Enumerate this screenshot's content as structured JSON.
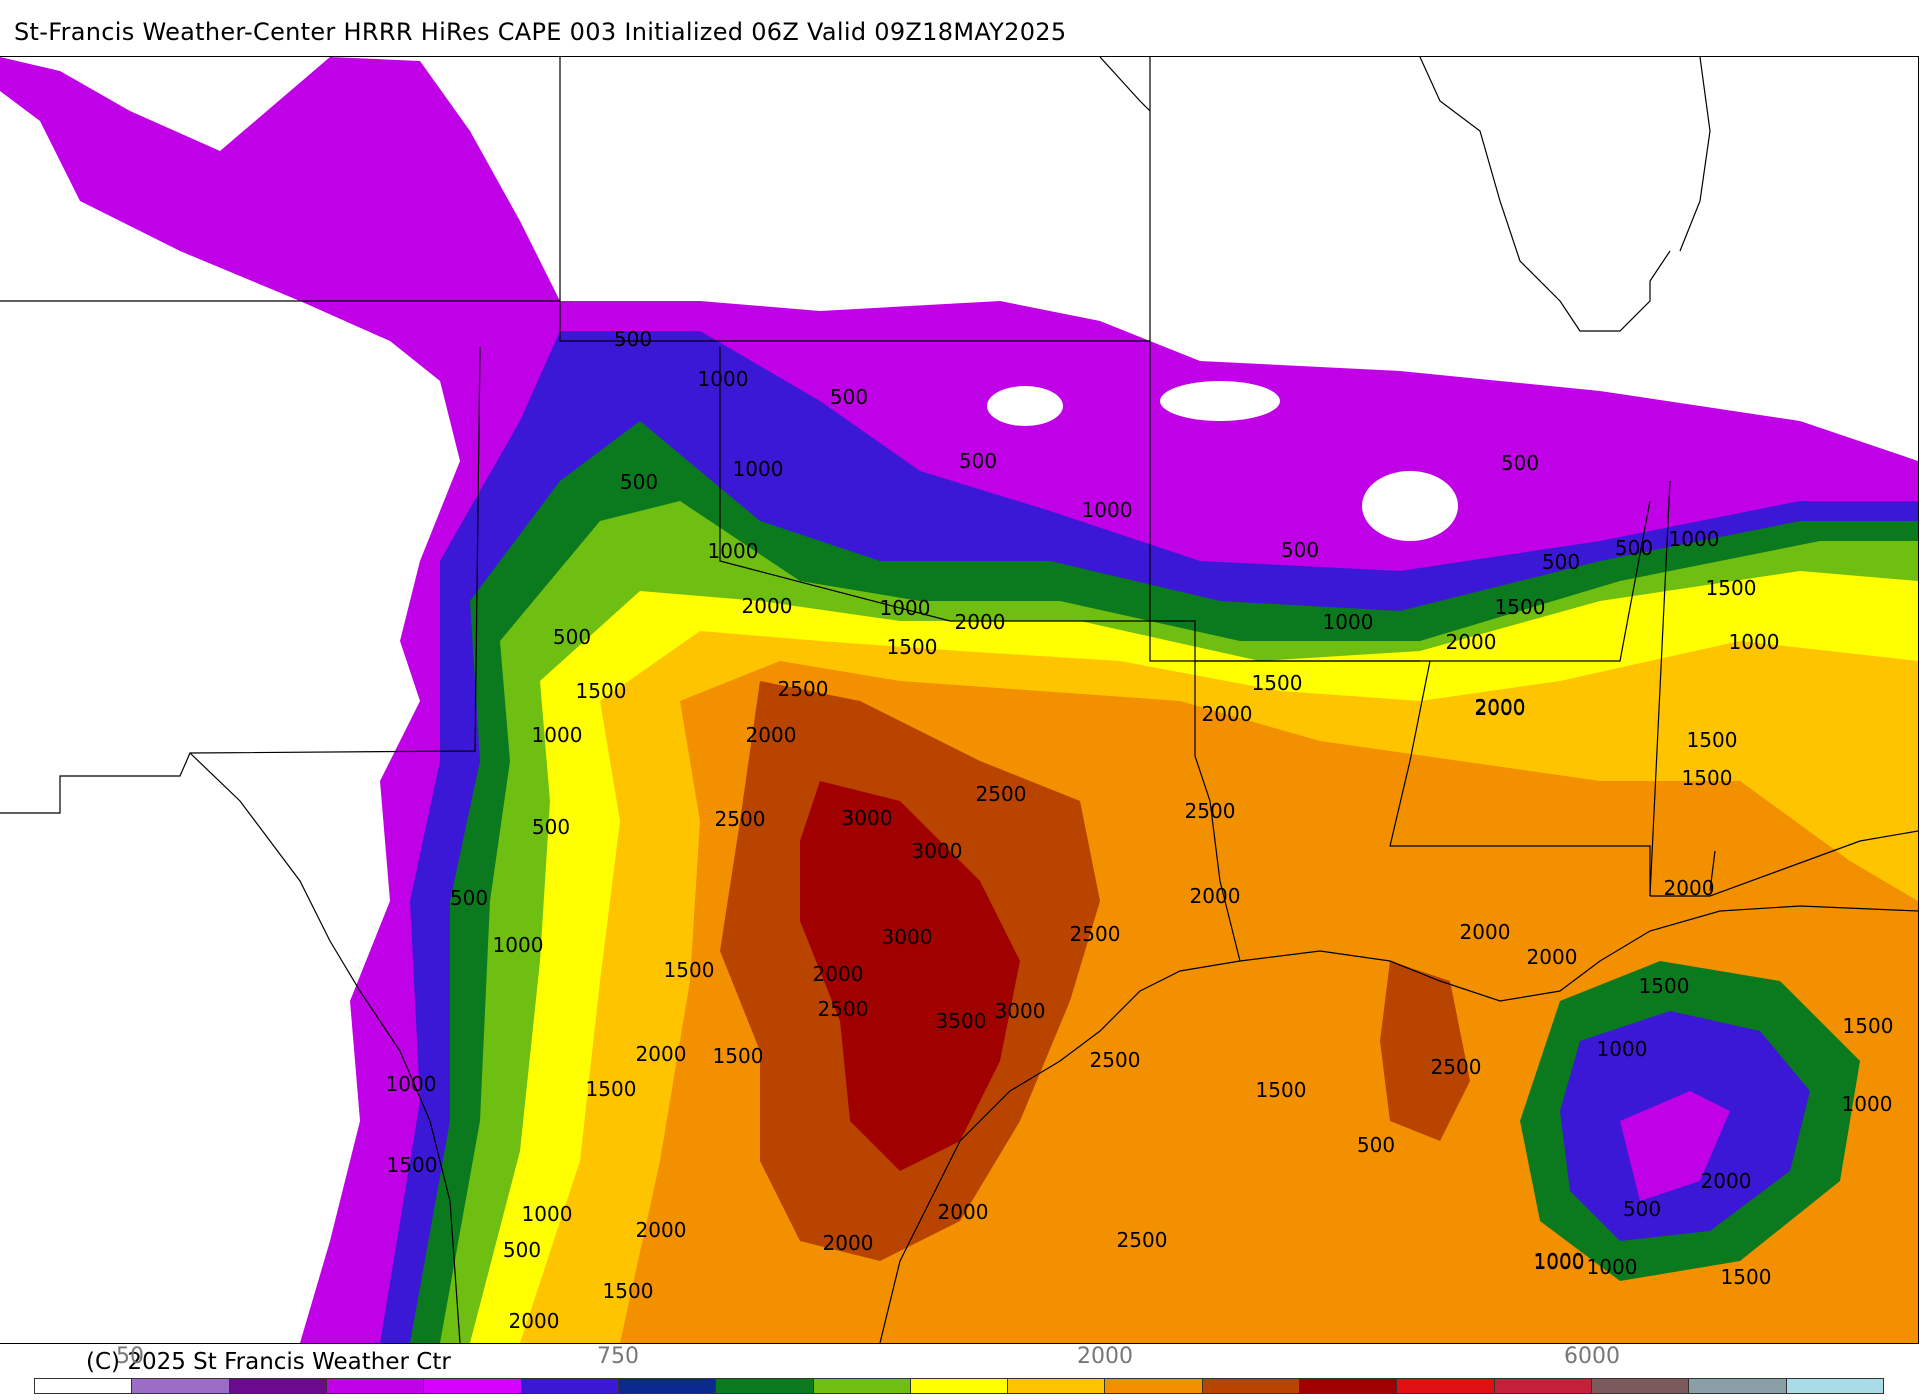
{
  "title": "St-Francis Weather-Center HRRR HiRes CAPE  003 Initialized  06Z Valid 09Z18MAY2025",
  "copyright": "(C) 2025 St Francis Weather Ctr",
  "colors": {
    "light_purple": "#9b6dc6",
    "dark_purple": "#6a0a8c",
    "magenta": "#c000e6",
    "bright_magenta": "#d600ff",
    "blue": "#3a18d6",
    "navy": "#0a2a90",
    "dark_green": "#0b7a1e",
    "green": "#6fbf12",
    "yellow": "#ffff00",
    "gold": "#ffc400",
    "orange": "#f29000",
    "rust": "#b84400",
    "dark_red": "#a00000",
    "red": "#e01010",
    "crimson": "#c4203a",
    "brown_gray": "#7a5a5a",
    "gray": "#8a9ea6",
    "light_blue": "#a8dce6"
  },
  "colorbar": {
    "colors": [
      "#ffffff",
      "#9b6dc6",
      "#6a0a8c",
      "#c000e6",
      "#d600ff",
      "#3a18d6",
      "#0a2a90",
      "#0b7a1e",
      "#6fbf12",
      "#ffff00",
      "#ffc400",
      "#f29000",
      "#b84400",
      "#a00000",
      "#e01010",
      "#c4203a",
      "#7a5a5a",
      "#8a9ea6",
      "#a8dce6"
    ],
    "tick_labels": [
      "50",
      "750",
      "2000",
      "6000"
    ]
  },
  "contour_labels": [
    "500",
    "1000",
    "500",
    "500",
    "1000",
    "500",
    "1000",
    "1000",
    "500",
    "500",
    "500",
    "500",
    "1000",
    "2000",
    "1000",
    "2000",
    "1500",
    "1000",
    "2000",
    "1500",
    "2000",
    "2000",
    "1500",
    "500",
    "1500",
    "1000",
    "1500",
    "1000",
    "2500",
    "2000",
    "2000",
    "1500",
    "2500",
    "3000",
    "2500",
    "2500",
    "3000",
    "1500",
    "500",
    "2000",
    "2000",
    "500",
    "3000",
    "2500",
    "2000",
    "1000",
    "2000",
    "1500",
    "2000",
    "1500",
    "2500",
    "3500",
    "3000",
    "1500",
    "2000",
    "1500",
    "1500",
    "1000",
    "2500",
    "2500",
    "1000",
    "1500",
    "1500",
    "500",
    "2000",
    "1000",
    "1000",
    "500",
    "2000",
    "2500",
    "2000",
    "2000",
    "500",
    "1000",
    "1500",
    "1000",
    "1500",
    "2000",
    "1000"
  ]
}
